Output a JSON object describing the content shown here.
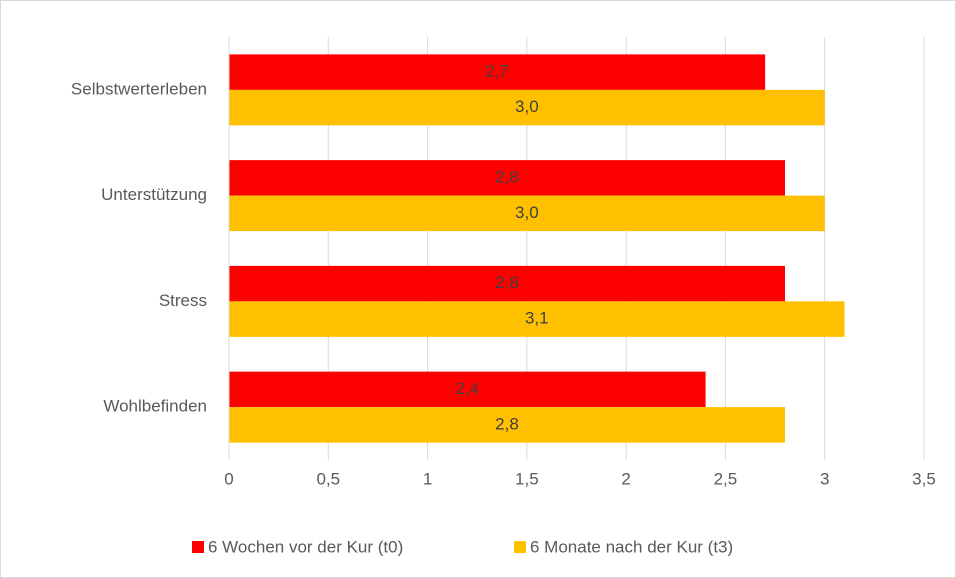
{
  "chart_data": {
    "type": "bar",
    "orientation": "horizontal",
    "categories": [
      "Selbstwerterleben",
      "Unterstützung",
      "Stress",
      "Wohlbefinden"
    ],
    "series": [
      {
        "name": "6 Wochen vor der Kur (t0)",
        "color": "#ff0000",
        "values": [
          2.7,
          2.8,
          2.8,
          2.4
        ],
        "value_labels": [
          "2,7",
          "2,8",
          "2,8",
          "2,4"
        ]
      },
      {
        "name": "6 Monate nach der Kur (t3)",
        "color": "#ffc000",
        "values": [
          3.0,
          3.0,
          3.1,
          2.8
        ],
        "value_labels": [
          "3,0",
          "3,0",
          "3,1",
          "2,8"
        ]
      }
    ],
    "xlim": [
      0,
      3.5
    ],
    "xticks": [
      0,
      {
        "value": 0.5,
        "label": "0,5"
      },
      1,
      {
        "value": 1.5,
        "label": "1,5"
      },
      2,
      {
        "value": 2.5,
        "label": "2,5"
      },
      3,
      {
        "value": 3.5,
        "label": "3,5"
      }
    ],
    "grid": true,
    "legend": "bottom"
  }
}
